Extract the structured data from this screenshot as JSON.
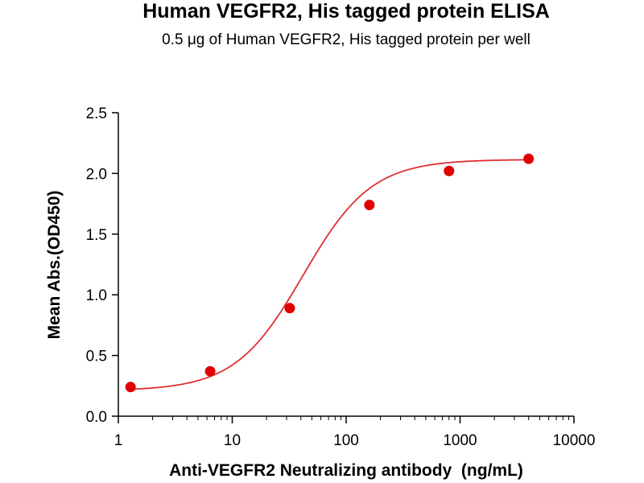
{
  "chart_data": {
    "type": "scatter",
    "title": "Human VEGFR2, His tagged protein ELISA",
    "subtitle": "0.5 μg of Human VEGFR2, His tagged protein per well",
    "xlabel": "Anti-VEGFR2 Neutralizing antibody  (ng/mL)",
    "ylabel": "Mean Abs.(OD450)",
    "x_scale": "log",
    "xlim": [
      1,
      10000
    ],
    "ylim": [
      0,
      2.5
    ],
    "x_ticks": [
      1,
      10,
      100,
      1000,
      10000
    ],
    "x_tick_labels": [
      "1",
      "10",
      "100",
      "1000",
      "10000"
    ],
    "y_ticks": [
      0,
      0.5,
      1,
      1.5,
      2,
      2.5
    ],
    "y_tick_labels": [
      "0.0",
      "0.5",
      "1.0",
      "1.5",
      "2.0",
      "2.5"
    ],
    "grid": false,
    "series": [
      {
        "x": [
          1.28,
          6.4,
          32,
          160,
          800,
          4000
        ],
        "y": [
          0.24,
          0.37,
          0.89,
          1.74,
          2.02,
          2.12
        ],
        "color": "#e00000",
        "fit": "4pl",
        "fit_color": "#e03030"
      }
    ]
  }
}
